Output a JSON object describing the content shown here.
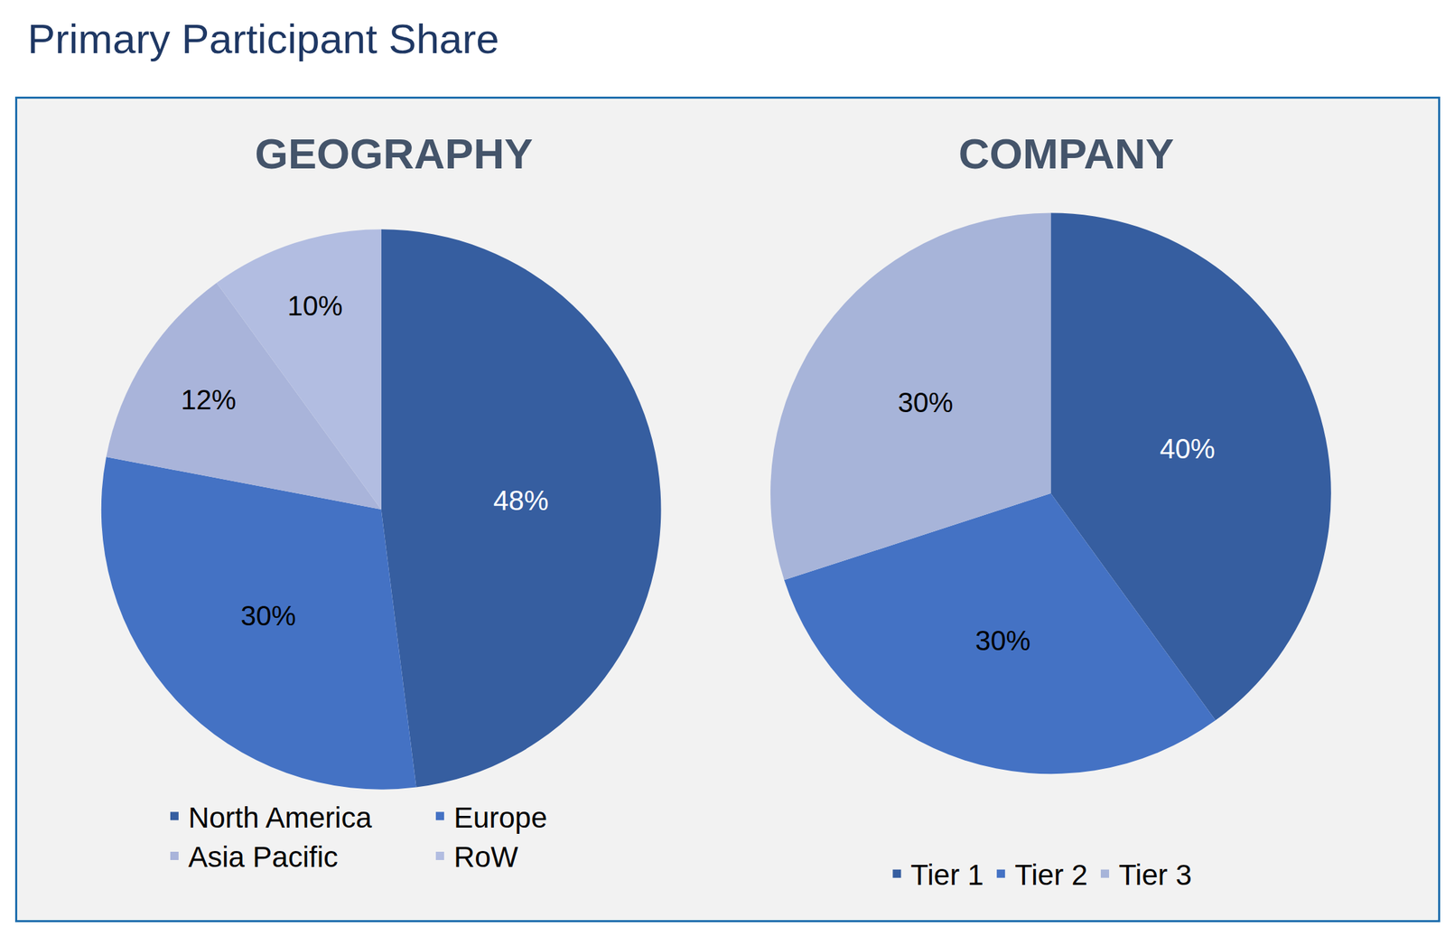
{
  "title": "Primary Participant Share",
  "chart_data": [
    {
      "type": "pie",
      "title": "GEOGRAPHY",
      "categories": [
        "North America",
        "Europe",
        "Asia Pacific",
        "RoW"
      ],
      "values": [
        48,
        30,
        12,
        10
      ],
      "value_labels": [
        "48%",
        "30%",
        "12%",
        "10%"
      ],
      "colors": [
        "#365EA0",
        "#4472C4",
        "#A9B4DA",
        "#B2BDE1"
      ],
      "data_labels": true,
      "legend": "bottom"
    },
    {
      "type": "pie",
      "title": "COMPANY",
      "categories": [
        "Tier 1",
        "Tier 2",
        "Tier 3"
      ],
      "values": [
        40,
        30,
        30
      ],
      "value_labels": [
        "40%",
        "30%",
        "30%"
      ],
      "colors": [
        "#365EA0",
        "#4472C4",
        "#A7B4D9"
      ],
      "data_labels": true,
      "legend": "bottom"
    }
  ]
}
